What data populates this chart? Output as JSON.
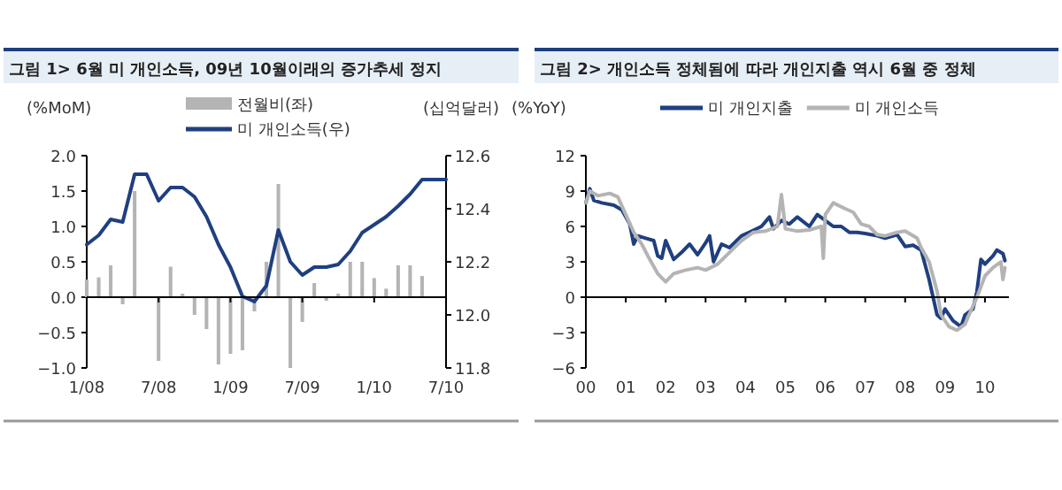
{
  "chart_data": [
    {
      "type": "bar",
      "title": "그림 1> 6월 미 개인소득, 09년 10월이래의 증가추세 정지",
      "ylabel": "(%MoM)",
      "y2label": "(십억달러)",
      "legend": "top",
      "categories": [
        "1/08",
        null,
        null,
        null,
        null,
        null,
        "7/08",
        null,
        null,
        null,
        null,
        null,
        "1/09",
        null,
        null,
        null,
        null,
        null,
        "7/09",
        null,
        null,
        null,
        null,
        null,
        "1/10",
        null,
        null,
        null,
        null,
        null,
        "7/10"
      ],
      "ylim": [
        -1,
        2
      ],
      "yticks": [
        {
          "value": -1,
          "label": "−1.0"
        },
        {
          "value": -0.5,
          "label": "−0.5"
        },
        {
          "value": 0,
          "label": "0.0"
        },
        0.5,
        {
          "value": 1,
          "label": "1.0"
        },
        1.5,
        {
          "value": 2,
          "label": "2.0"
        }
      ],
      "y2lim": [
        11.8,
        12.6
      ],
      "y2ticks": [
        11.8,
        {
          "value": 12,
          "label": "12.0"
        },
        12.2,
        12.4,
        12.6
      ],
      "series": [
        {
          "name": "전월비(좌)",
          "type": "bar",
          "color": "#b4b4b4",
          "values": [
            0.25,
            0.28,
            0.45,
            -0.1,
            1.5,
            null,
            -0.9,
            0.43,
            0.05,
            -0.25,
            -0.45,
            -0.95,
            -0.8,
            -0.75,
            -0.2,
            0.5,
            1.6,
            -1.0,
            -0.35,
            0.2,
            -0.05,
            0.05,
            0.5,
            0.5,
            0.27,
            0.12,
            0.45,
            0.45,
            0.3,
            null,
            null
          ]
        },
        {
          "name": "미 개인소득(우)",
          "type": "line",
          "axis": "y2",
          "color": "#1f3f80",
          "values": [
            12.265,
            12.3,
            12.36,
            12.35,
            12.53,
            12.53,
            12.43,
            12.48,
            12.48,
            12.445,
            12.37,
            12.265,
            12.18,
            12.07,
            12.05,
            12.11,
            12.32,
            12.2,
            12.15,
            12.18,
            12.18,
            12.19,
            12.24,
            12.31,
            12.34,
            12.37,
            12.41,
            12.455,
            12.51,
            12.51,
            12.51
          ]
        }
      ]
    },
    {
      "type": "line",
      "title": "그림 2> 개인소득 정체됨에 따라 개인지출 역시 6월 중 정체",
      "ylabel": "(%YoY)",
      "legend": "top",
      "xlim": [
        2000,
        2010.6
      ],
      "xticks": [
        {
          "value": 2000,
          "label": "00"
        },
        {
          "value": 2001,
          "label": "01"
        },
        {
          "value": 2002,
          "label": "02"
        },
        {
          "value": 2003,
          "label": "03"
        },
        {
          "value": 2004,
          "label": "04"
        },
        {
          "value": 2005,
          "label": "05"
        },
        {
          "value": 2006,
          "label": "06"
        },
        {
          "value": 2007,
          "label": "07"
        },
        {
          "value": 2008,
          "label": "08"
        },
        {
          "value": 2009,
          "label": "09"
        },
        {
          "value": 2010,
          "label": "10"
        }
      ],
      "ylim": [
        -6,
        12
      ],
      "yticks": [
        {
          "value": -6,
          "label": "−6"
        },
        {
          "value": -3,
          "label": "−3"
        },
        0,
        3,
        6,
        9,
        12
      ],
      "series": [
        {
          "name": "미 개인지출",
          "color": "#1f3f80",
          "x": [
            2000.0,
            2000.1,
            2000.2,
            2000.4,
            2000.7,
            2000.9,
            2001.0,
            2001.1,
            2001.2,
            2001.3,
            2001.5,
            2001.7,
            2001.8,
            2001.9,
            2002.0,
            2002.2,
            2002.4,
            2002.6,
            2002.8,
            2003.0,
            2003.1,
            2003.2,
            2003.4,
            2003.6,
            2003.9,
            2004.1,
            2004.4,
            2004.6,
            2004.7,
            2004.9,
            2005.1,
            2005.3,
            2005.6,
            2005.8,
            2006.0,
            2006.2,
            2006.4,
            2006.6,
            2006.8,
            2007.0,
            2007.3,
            2007.5,
            2007.8,
            2008.0,
            2008.2,
            2008.4,
            2008.6,
            2008.8,
            2008.9,
            2009.0,
            2009.2,
            2009.4,
            2009.5,
            2009.7,
            2009.8,
            2009.9,
            2010.0,
            2010.2,
            2010.3,
            2010.45,
            2010.5
          ],
          "values": [
            8.0,
            9.2,
            8.2,
            8.0,
            7.8,
            7.4,
            6.8,
            6.2,
            4.5,
            5.2,
            5.0,
            4.8,
            3.5,
            3.3,
            4.8,
            3.2,
            3.8,
            4.5,
            3.6,
            4.6,
            5.2,
            3.0,
            4.5,
            4.2,
            5.2,
            5.5,
            6.0,
            6.8,
            5.8,
            6.5,
            6.2,
            6.8,
            6.0,
            7.0,
            6.5,
            6.0,
            6.0,
            5.5,
            5.5,
            5.4,
            5.2,
            5.0,
            5.3,
            4.3,
            4.4,
            4.0,
            1.5,
            -1.5,
            -1.8,
            -1.0,
            -2.0,
            -2.5,
            -1.5,
            -1.0,
            0.5,
            3.2,
            2.8,
            3.5,
            4.0,
            3.7,
            3.1
          ]
        },
        {
          "name": "미 개인소득",
          "color": "#b4b4b4",
          "x": [
            2000.0,
            2000.1,
            2000.3,
            2000.6,
            2000.8,
            2001.0,
            2001.2,
            2001.4,
            2001.6,
            2001.8,
            2002.0,
            2002.2,
            2002.5,
            2002.8,
            2003.0,
            2003.3,
            2003.6,
            2003.9,
            2004.2,
            2004.5,
            2004.8,
            2004.9,
            2005.0,
            2005.3,
            2005.6,
            2005.9,
            2005.95,
            2006.0,
            2006.2,
            2006.5,
            2006.7,
            2006.9,
            2007.1,
            2007.3,
            2007.5,
            2007.8,
            2008.0,
            2008.3,
            2008.4,
            2008.6,
            2008.8,
            2008.9,
            2009.1,
            2009.3,
            2009.5,
            2009.6,
            2009.8,
            2010.0,
            2010.2,
            2010.4,
            2010.45,
            2010.5
          ],
          "values": [
            8.0,
            9.0,
            8.6,
            8.8,
            8.5,
            7.0,
            5.5,
            4.5,
            3.2,
            2.0,
            1.3,
            2.0,
            2.3,
            2.5,
            2.3,
            2.8,
            3.8,
            4.8,
            5.5,
            5.6,
            6.0,
            8.7,
            5.8,
            5.6,
            5.7,
            6.0,
            3.3,
            7.0,
            8.0,
            7.5,
            7.2,
            6.2,
            6.0,
            5.3,
            5.2,
            5.5,
            5.6,
            5.0,
            4.2,
            3.0,
            0.5,
            -1.5,
            -2.5,
            -2.8,
            -2.3,
            -1.5,
            0.0,
            1.8,
            2.5,
            3.0,
            1.5,
            2.5
          ]
        }
      ]
    }
  ]
}
